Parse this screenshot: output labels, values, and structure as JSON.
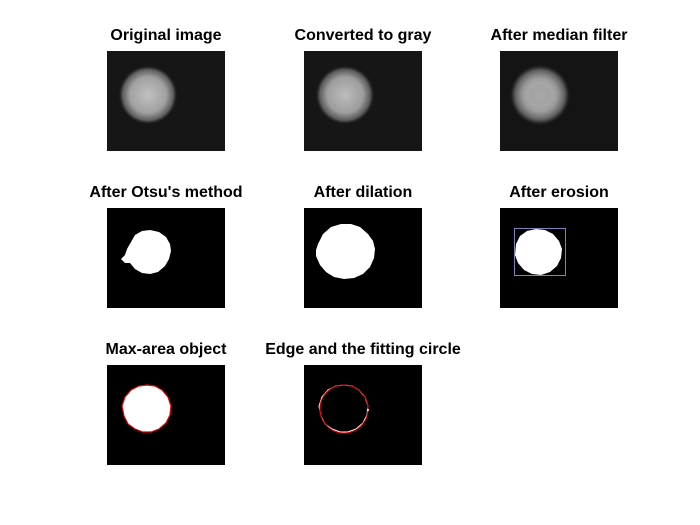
{
  "panels": [
    {
      "title": "Original image"
    },
    {
      "title": "Converted to gray"
    },
    {
      "title": "After median filter"
    },
    {
      "title": "After Otsu's method"
    },
    {
      "title": "After dilation"
    },
    {
      "title": "After erosion"
    },
    {
      "title": "Max-area object"
    },
    {
      "title": "Edge and the fitting circle"
    }
  ],
  "colors": {
    "background": "#000000",
    "foreground": "#ffffff",
    "edge": "#ff0000",
    "bounding_box": "#8080c0"
  }
}
